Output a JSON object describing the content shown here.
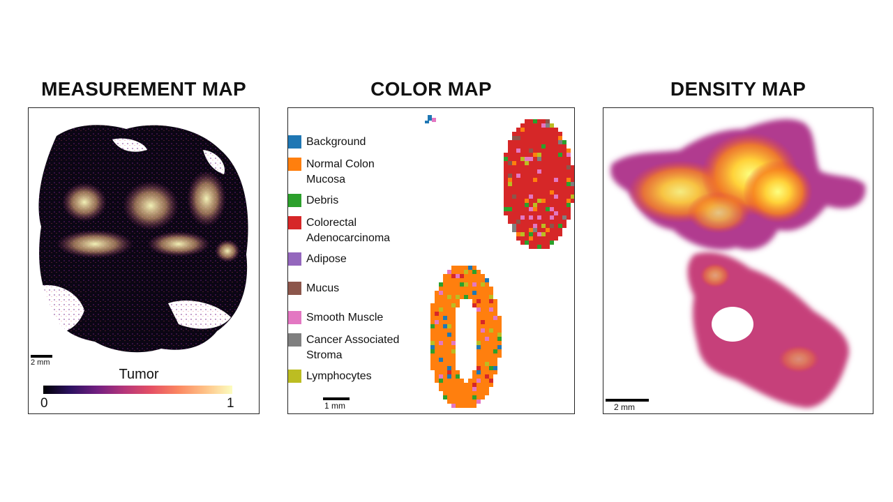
{
  "panels": {
    "measurement": {
      "title": "MEASUREMENT MAP",
      "scale_label": "2 mm",
      "colorbar": {
        "title": "Tumor",
        "min_label": "0",
        "max_label": "1",
        "colors": [
          "#000004",
          "#2c1160",
          "#721f81",
          "#b5367a",
          "#e55064",
          "#fb8761",
          "#fec287",
          "#fcfdbf"
        ]
      }
    },
    "color": {
      "title": "COLOR MAP",
      "scale_label": "1 mm",
      "legend": [
        {
          "label": "Background",
          "color": "#1f77b4"
        },
        {
          "label": "Normal Colon\nMucosa",
          "color": "#ff7f0e"
        },
        {
          "label": "Debris",
          "color": "#2ca02c"
        },
        {
          "label": "Colorectal\nAdenocarcinoma",
          "color": "#d62728"
        },
        {
          "label": "Adipose",
          "color": "#9467bd"
        },
        {
          "label": "Mucus",
          "color": "#8c564b"
        },
        {
          "label": "Smooth Muscle",
          "color": "#e377c2"
        },
        {
          "label": "Cancer Associated\nStroma",
          "color": "#7f7f7f"
        },
        {
          "label": "Lymphocytes",
          "color": "#bcbd22"
        }
      ]
    },
    "density": {
      "title": "DENSITY MAP",
      "scale_label": "2 mm"
    }
  }
}
